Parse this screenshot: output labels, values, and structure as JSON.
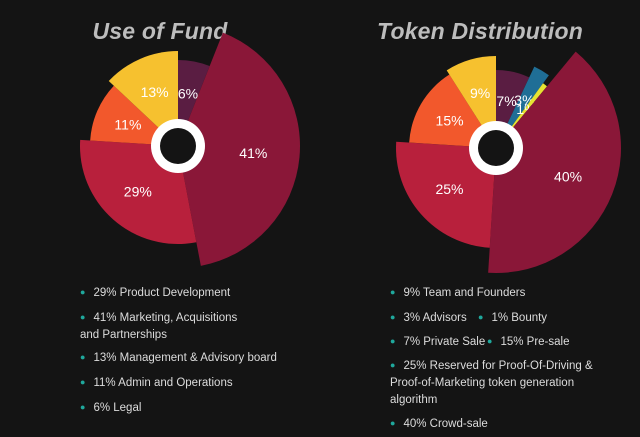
{
  "charts": [
    {
      "title": "Use of Fund",
      "chart_data": {
        "type": "pie",
        "title": "Use of Fund",
        "slices": [
          {
            "label": "6%",
            "value": 6,
            "color": "#5a1d42"
          },
          {
            "label": "41%",
            "value": 41,
            "color": "#8a1738"
          },
          {
            "label": "29%",
            "value": 29,
            "color": "#b8203c"
          },
          {
            "label": "11%",
            "value": 11,
            "color": "#f2582c"
          },
          {
            "label": "13%",
            "value": 13,
            "color": "#f6c12f"
          }
        ]
      },
      "legend": [
        {
          "text": "29% Product Development"
        },
        {
          "text": "41% Marketing, Acquisitions and Partnerships"
        },
        {
          "text": "13% Management & Advisory board"
        },
        {
          "text": "11% Admin and Operations"
        },
        {
          "text": "6% Legal"
        }
      ]
    },
    {
      "title": "Token Distribution",
      "chart_data": {
        "type": "pie",
        "title": "Token Distribution",
        "slices": [
          {
            "label": "7%",
            "value": 7,
            "color": "#5a1d42"
          },
          {
            "label": "3%",
            "value": 3,
            "color": "#1f6e96"
          },
          {
            "label": "1%",
            "value": 1,
            "color": "#e6e332"
          },
          {
            "label": "40%",
            "value": 40,
            "color": "#8a1738"
          },
          {
            "label": "25%",
            "value": 25,
            "color": "#b8203c"
          },
          {
            "label": "15%",
            "value": 15,
            "color": "#f2582c"
          },
          {
            "label": "9%",
            "value": 9,
            "color": "#f6c12f"
          }
        ]
      },
      "legend": [
        {
          "text": "9% Team and Founders"
        },
        {
          "text": "3% Advisors"
        },
        {
          "text": "1% Bounty"
        },
        {
          "text": "7% Private Sale"
        },
        {
          "text": "15% Pre-sale"
        },
        {
          "text": "25% Reserved for Proof-Of-Driving & Proof-of-Marketing token generation algorithm"
        },
        {
          "text": "40% Crowd-sale"
        }
      ]
    }
  ]
}
